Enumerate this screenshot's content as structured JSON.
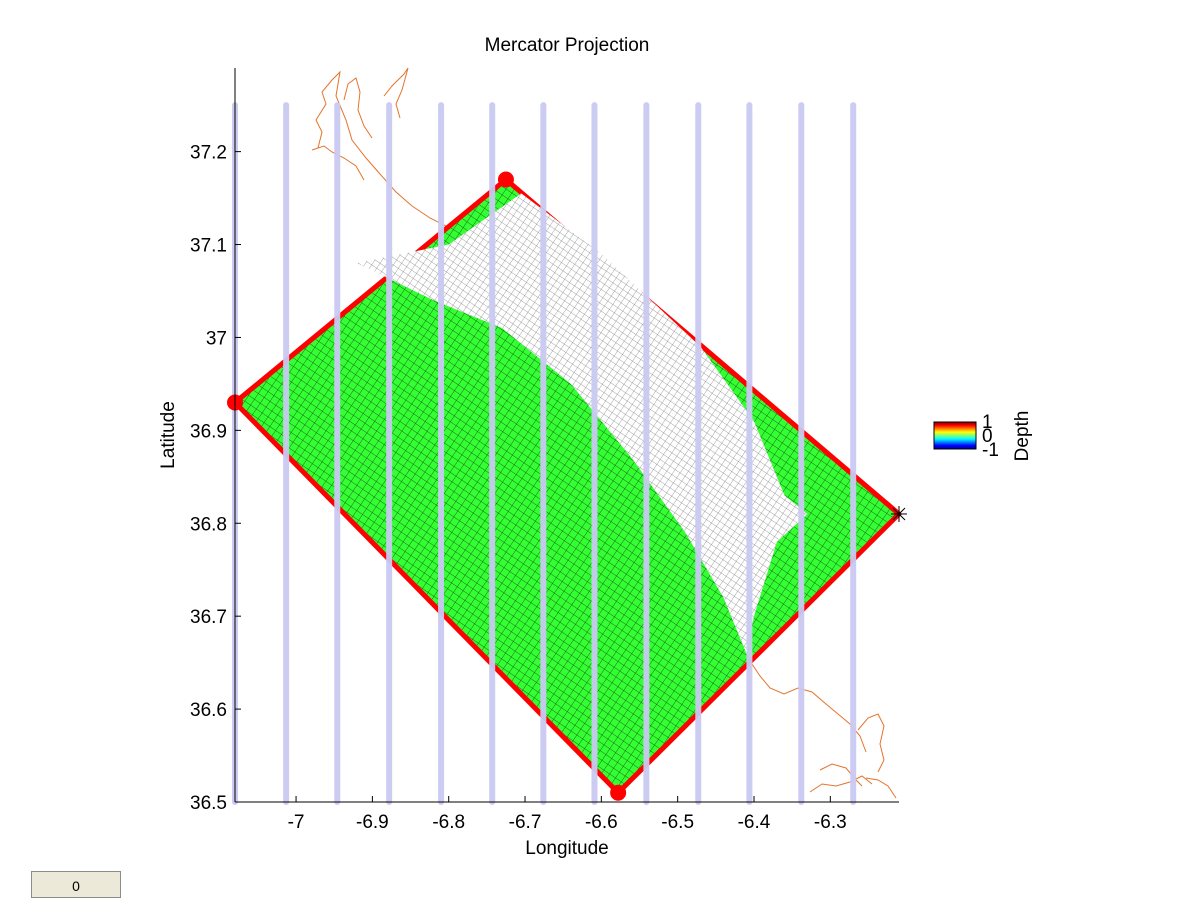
{
  "chart_data": {
    "type": "map",
    "title": "Mercator Projection",
    "xlabel": "Longitude",
    "ylabel": "Latitude",
    "xlim": [
      -7.08,
      -6.21
    ],
    "ylim": [
      36.5,
      37.29
    ],
    "xticks": [
      -7.0,
      -6.9,
      -6.8,
      -6.7,
      -6.6,
      -6.5,
      -6.4,
      -6.3
    ],
    "xtick_labels": [
      "-7",
      "-6.9",
      "-6.8",
      "-6.7",
      "-6.6",
      "-6.5",
      "-6.4",
      "-6.3"
    ],
    "yticks": [
      36.5,
      36.6,
      36.7,
      36.8,
      36.9,
      37.0,
      37.1,
      37.2
    ],
    "ytick_labels": [
      "36.5",
      "36.6",
      "36.7",
      "36.8",
      "36.9",
      "37",
      "37.1",
      "37.2"
    ],
    "grid": false,
    "domain_corners": [
      {
        "lon": -7.08,
        "lat": 36.93
      },
      {
        "lon": -6.725,
        "lat": 37.17
      },
      {
        "lon": -6.21,
        "lat": 36.81
      },
      {
        "lon": -6.578,
        "lat": 36.51
      }
    ],
    "corner_markers": [
      {
        "lon": -7.08,
        "lat": 36.93
      },
      {
        "lon": -6.725,
        "lat": 37.17
      },
      {
        "lon": -6.578,
        "lat": 36.51
      }
    ],
    "star_marker": {
      "lon": -6.21,
      "lat": 36.81
    },
    "transects_lon": [
      -7.08,
      -7.013,
      -6.946,
      -6.878,
      -6.81,
      -6.743,
      -6.676,
      -6.609,
      -6.541,
      -6.473,
      -6.406,
      -6.338,
      -6.27
    ],
    "transect_lat_range": [
      36.5,
      37.25
    ],
    "land_polygon": [
      {
        "lon": -6.92,
        "lat": 37.08
      },
      {
        "lon": -6.8,
        "lat": 37.1
      },
      {
        "lon": -6.705,
        "lat": 37.155
      },
      {
        "lon": -6.6,
        "lat": 37.09
      },
      {
        "lon": -6.47,
        "lat": 36.99
      },
      {
        "lon": -6.4,
        "lat": 36.91
      },
      {
        "lon": -6.36,
        "lat": 36.83
      },
      {
        "lon": -6.33,
        "lat": 36.81
      },
      {
        "lon": -6.37,
        "lat": 36.78
      },
      {
        "lon": -6.4,
        "lat": 36.7
      },
      {
        "lon": -6.41,
        "lat": 36.66
      },
      {
        "lon": -6.44,
        "lat": 36.72
      },
      {
        "lon": -6.49,
        "lat": 36.79
      },
      {
        "lon": -6.56,
        "lat": 36.87
      },
      {
        "lon": -6.64,
        "lat": 36.95
      },
      {
        "lon": -6.73,
        "lat": 37.01
      },
      {
        "lon": -6.82,
        "lat": 37.04
      }
    ],
    "colorbar": {
      "label": "Depth",
      "ticks": [
        "1",
        "0",
        "-1"
      ]
    },
    "colors": {
      "domain_fill": "#33ff33",
      "domain_edge": "#ff0000",
      "mesh": "#1a3a1a",
      "transect": "#c9c9f2",
      "coastline": "#e4742c"
    }
  },
  "status_box": {
    "value": "0"
  }
}
